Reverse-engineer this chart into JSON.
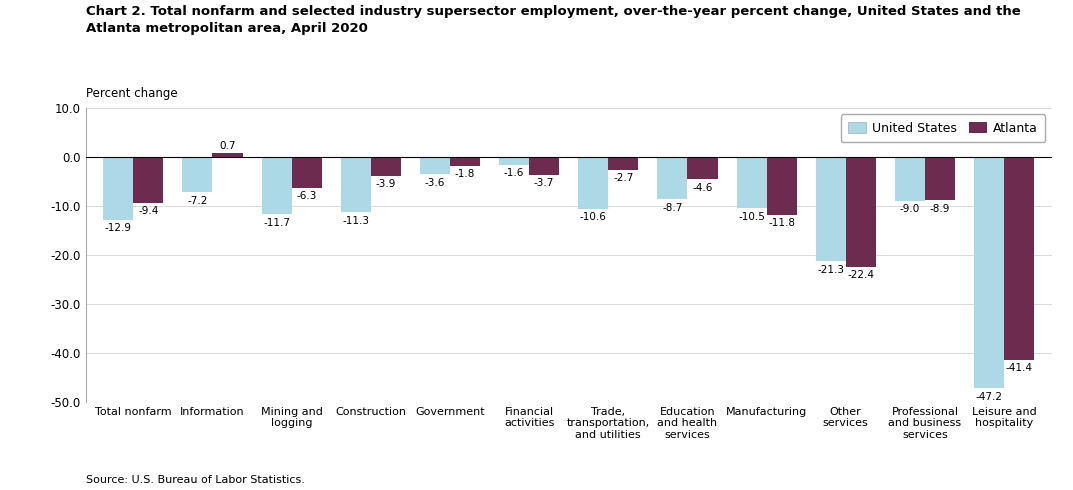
{
  "title_line1": "Chart 2. Total nonfarm and selected industry supersector employment, over-the-year percent change, United States and the",
  "title_line2": "Atlanta metropolitan area, April 2020",
  "ylabel_text": "Percent change",
  "source": "Source: U.S. Bureau of Labor Statistics.",
  "categories": [
    "Total nonfarm",
    "Information",
    "Mining and\nlogging",
    "Construction",
    "Government",
    "Financial\nactivities",
    "Trade,\ntransportation,\nand utilities",
    "Education\nand health\nservices",
    "Manufacturing",
    "Other\nservices",
    "Professional\nand business\nservices",
    "Leisure and\nhospitality"
  ],
  "us_values": [
    -12.9,
    -7.2,
    -11.7,
    -11.3,
    -3.6,
    -1.6,
    -10.6,
    -8.7,
    -10.5,
    -21.3,
    -9.0,
    -47.2
  ],
  "atl_values": [
    -9.4,
    0.7,
    -6.3,
    -3.9,
    -1.8,
    -3.7,
    -2.7,
    -4.6,
    -11.8,
    -22.4,
    -8.9,
    -41.4
  ],
  "us_color": "#add8e6",
  "atl_color": "#6d2b50",
  "ylim": [
    -50.0,
    10.0
  ],
  "yticks": [
    10.0,
    0.0,
    -10.0,
    -20.0,
    -30.0,
    -40.0,
    -50.0
  ],
  "legend_labels": [
    "United States",
    "Atlanta"
  ],
  "bar_width": 0.38,
  "figsize": [
    10.73,
    4.9
  ],
  "dpi": 100,
  "label_fontsize": 7.5,
  "tick_fontsize": 8.5,
  "cat_fontsize": 8.0
}
